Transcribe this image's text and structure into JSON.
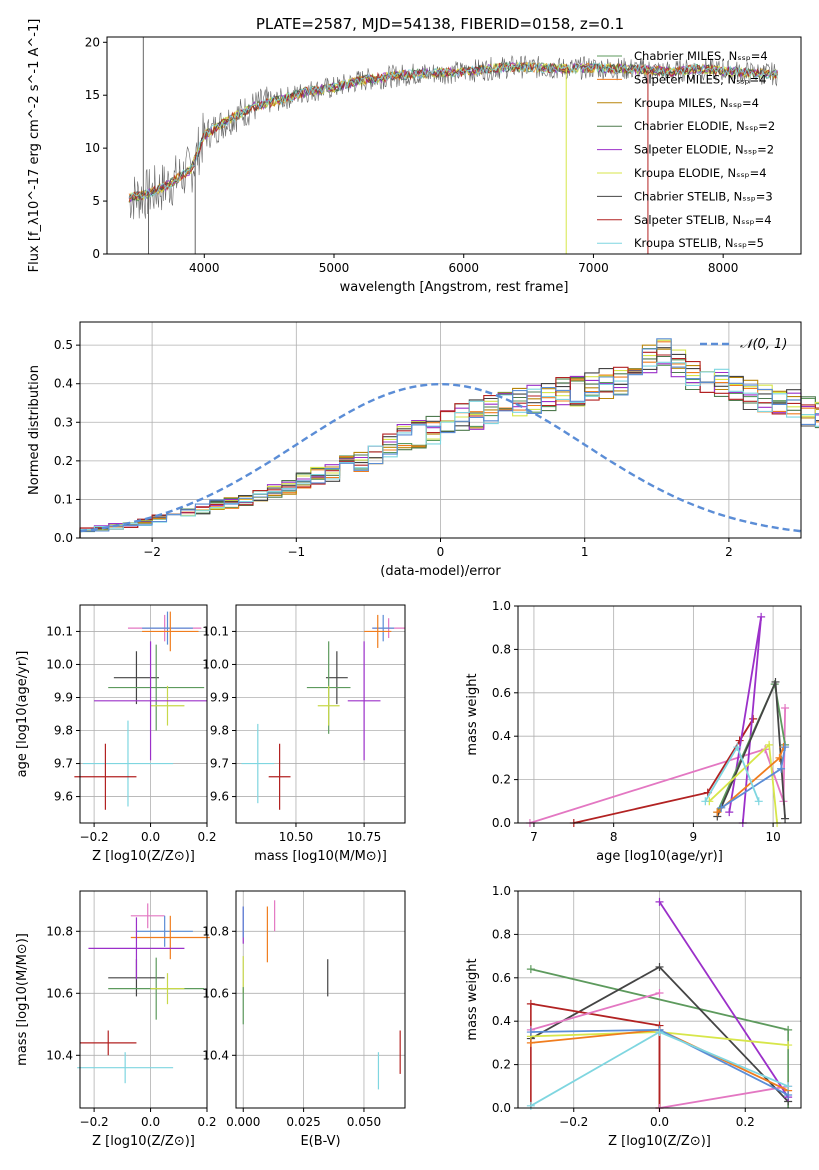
{
  "figure": {
    "title": "PLATE=2587, MJD=54138, FIBERID=0158, z=0.1"
  },
  "chart_data": [
    {
      "id": "spectrum",
      "type": "line",
      "xlabel": "wavelength [Angstrom, rest frame]",
      "ylabel": "Flux [f_λ10^-17 erg cm^-2 s^-1 A^-1]",
      "xlim": [
        3250,
        8600
      ],
      "ylim": [
        0,
        20.5
      ],
      "xticks": [
        4000,
        5000,
        6000,
        7000,
        8000
      ],
      "yticks": [
        0,
        5,
        10,
        15,
        20
      ],
      "grid": false,
      "legend_position": "top-right",
      "continuum": {
        "x": [
          3420,
          3550,
          3700,
          3900,
          4000,
          4200,
          4400,
          4600,
          4800,
          5000,
          5200,
          5400,
          5600,
          5800,
          6000,
          6200,
          6400,
          6600,
          6800,
          7000,
          7200,
          7400,
          7600,
          7800,
          8000,
          8200,
          8420
        ],
        "y": [
          5.3,
          5.6,
          6.4,
          8.0,
          11.2,
          12.8,
          14.0,
          14.6,
          15.4,
          15.7,
          16.4,
          16.7,
          17.0,
          17.1,
          17.2,
          17.5,
          17.7,
          17.6,
          17.5,
          17.6,
          17.5,
          17.4,
          17.2,
          17.5,
          17.3,
          17.1,
          17.0
        ]
      },
      "spikes": [
        {
          "x": 3530,
          "y": 20.5
        },
        {
          "x": 3570,
          "y": 0
        },
        {
          "x": 3930,
          "y": 0
        },
        {
          "x": 6790,
          "y": 0
        },
        {
          "x": 7420,
          "y": 0
        }
      ],
      "series": [
        {
          "name": "Chabrier MILES, N_SSP=4",
          "color": "#5d9a5d"
        },
        {
          "name": "Salpeter MILES, N_SSP=4",
          "color": "#f07d1e"
        },
        {
          "name": "Kroupa MILES, N_SSP=4",
          "color": "#b8860b"
        },
        {
          "name": "Chabrier ELODIE, N_SSP=2",
          "color": "#4f7a4f"
        },
        {
          "name": "Salpeter ELODIE, N_SSP=2",
          "color": "#9b30c9"
        },
        {
          "name": "Kroupa ELODIE, N_SSP=4",
          "color": "#d7e64a"
        },
        {
          "name": "Chabrier STELIB, N_SSP=3",
          "color": "#444444"
        },
        {
          "name": "Salpeter STELIB, N_SSP=4",
          "color": "#b22222"
        },
        {
          "name": "Kroupa STELIB, N_SSP=5",
          "color": "#7fd6e0"
        }
      ]
    },
    {
      "id": "residuals",
      "type": "bar",
      "xlabel": "(data-model)/error",
      "ylabel": "Normed distribution",
      "xlim": [
        -2.5,
        2.5
      ],
      "ylim": [
        0,
        0.56
      ],
      "xticks": [
        -2,
        -1,
        0,
        1,
        2
      ],
      "yticks": [
        0.0,
        0.1,
        0.2,
        0.3,
        0.4,
        0.5
      ],
      "grid": true,
      "legend_position": "top-right",
      "reference": {
        "name": "𝒩(0, 1)",
        "color": "#5b8dd6",
        "mu": 0,
        "sigma": 1
      },
      "bin_width": 0.1,
      "bin_start": -2.5,
      "base": [
        0.02,
        0.025,
        0.03,
        0.035,
        0.04,
        0.05,
        0.055,
        0.065,
        0.075,
        0.085,
        0.09,
        0.1,
        0.11,
        0.12,
        0.13,
        0.15,
        0.16,
        0.17,
        0.19,
        0.2,
        0.22,
        0.24,
        0.26,
        0.27,
        0.28,
        0.3,
        0.31,
        0.32,
        0.33,
        0.35,
        0.35,
        0.36,
        0.37,
        0.38,
        0.38,
        0.39,
        0.4,
        0.41,
        0.43,
        0.46,
        0.48,
        0.45,
        0.42,
        0.41,
        0.4,
        0.38,
        0.37,
        0.36,
        0.36,
        0.35,
        0.33,
        0.32,
        0.3,
        0.29,
        0.27,
        0.25,
        0.24,
        0.22,
        0.21,
        0.2,
        0.18,
        0.16,
        0.15,
        0.13,
        0.12,
        0.11,
        0.1,
        0.09,
        0.08,
        0.07,
        0.065,
        0.055,
        0.05,
        0.045,
        0.04,
        0.035,
        0.03,
        0.028,
        0.025,
        0.022
      ],
      "series_colors": [
        "#5d9a5d",
        "#f07d1e",
        "#b8860b",
        "#4f7a4f",
        "#9b30c9",
        "#d7e64a",
        "#444444",
        "#b22222",
        "#7fd6e0",
        "#5b8dd6"
      ]
    },
    {
      "id": "z-age",
      "type": "scatter",
      "xlabel": "Z [log10(Z/Z⊙)]",
      "ylabel": "age [log10(age/yr)]",
      "xlim": [
        -0.25,
        0.2
      ],
      "ylim": [
        9.52,
        10.18
      ],
      "xticks": [
        -0.2,
        0.0,
        0.2
      ],
      "yticks": [
        9.6,
        9.7,
        9.8,
        9.9,
        10.0,
        10.1
      ],
      "grid": true,
      "points": [
        {
          "x": 0.05,
          "y": 10.11,
          "xerr": 0.13,
          "yerr": 0.04,
          "color": "#e377c2"
        },
        {
          "x": 0.06,
          "y": 10.11,
          "xerr": 0.09,
          "yerr": 0.05,
          "color": "#5b8dd6"
        },
        {
          "x": 0.07,
          "y": 10.1,
          "xerr": 0.1,
          "yerr": 0.06,
          "color": "#f07d1e"
        },
        {
          "x": -0.05,
          "y": 9.96,
          "xerr": 0.08,
          "yerr": 0.08,
          "color": "#444444"
        },
        {
          "x": 0.02,
          "y": 9.93,
          "xerr": 0.17,
          "yerr": 0.13,
          "color": "#5d9a5d"
        },
        {
          "x": 0.06,
          "y": 9.875,
          "xerr": 0.06,
          "yerr": 0.06,
          "color": "#c8d84a"
        },
        {
          "x": 0.0,
          "y": 9.89,
          "xerr": 0.2,
          "yerr": 0.18,
          "color": "#9b30c9"
        },
        {
          "x": -0.08,
          "y": 9.7,
          "xerr": 0.16,
          "yerr": 0.13,
          "color": "#7fd6e0"
        },
        {
          "x": -0.16,
          "y": 9.66,
          "xerr": 0.11,
          "yerr": 0.1,
          "color": "#b22222"
        }
      ]
    },
    {
      "id": "mass-age",
      "type": "scatter",
      "xlabel": "mass [log10(M/M⊙)]",
      "ylabel": "",
      "xlim": [
        10.28,
        10.9
      ],
      "ylim": [
        9.52,
        10.18
      ],
      "xticks": [
        10.25,
        10.5,
        10.75
      ],
      "yticks": [
        9.6,
        9.7,
        9.8,
        9.9,
        10.0,
        10.1
      ],
      "grid": true,
      "points": [
        {
          "x": 10.84,
          "y": 10.11,
          "xerr": 0.06,
          "yerr": 0.03,
          "color": "#e377c2"
        },
        {
          "x": 10.82,
          "y": 10.11,
          "xerr": 0.04,
          "yerr": 0.04,
          "color": "#5b8dd6"
        },
        {
          "x": 10.8,
          "y": 10.1,
          "xerr": 0.05,
          "yerr": 0.05,
          "color": "#f07d1e"
        },
        {
          "x": 10.65,
          "y": 9.96,
          "xerr": 0.04,
          "yerr": 0.08,
          "color": "#444444"
        },
        {
          "x": 10.62,
          "y": 9.93,
          "xerr": 0.08,
          "yerr": 0.14,
          "color": "#5d9a5d"
        },
        {
          "x": 10.62,
          "y": 9.875,
          "xerr": 0.04,
          "yerr": 0.06,
          "color": "#c8d84a"
        },
        {
          "x": 10.75,
          "y": 9.89,
          "xerr": 0.06,
          "yerr": 0.18,
          "color": "#9b30c9"
        },
        {
          "x": 10.36,
          "y": 9.7,
          "xerr": 0.06,
          "yerr": 0.12,
          "color": "#7fd6e0"
        },
        {
          "x": 10.44,
          "y": 9.66,
          "xerr": 0.04,
          "yerr": 0.1,
          "color": "#b22222"
        }
      ]
    },
    {
      "id": "age-weight",
      "type": "line",
      "xlabel": "age [log10(age/yr)]",
      "ylabel": "mass weight",
      "xlim": [
        6.8,
        10.35
      ],
      "ylim": [
        0,
        1.0
      ],
      "xticks": [
        7,
        8,
        9,
        10
      ],
      "yticks": [
        0.0,
        0.2,
        0.4,
        0.6,
        0.8,
        1.0
      ],
      "grid": true,
      "series": [
        {
          "color": "#e377c2",
          "x": [
            6.95,
            9.9,
            10.13,
            10.15
          ],
          "y": [
            0.0,
            0.34,
            0.1,
            0.53
          ]
        },
        {
          "color": "#b22222",
          "x": [
            7.5,
            9.18,
            9.75,
            9.58
          ],
          "y": [
            0.0,
            0.14,
            0.48,
            0.38
          ]
        },
        {
          "color": "#9b30c9",
          "x": [
            9.45,
            9.85,
            9.62
          ],
          "y": [
            0.05,
            0.95,
            0.0
          ]
        },
        {
          "color": "#5d9a5d",
          "x": [
            9.3,
            10.02,
            10.15
          ],
          "y": [
            0.05,
            0.64,
            0.36
          ]
        },
        {
          "color": "#444444",
          "x": [
            9.3,
            10.03,
            10.15
          ],
          "y": [
            0.03,
            0.65,
            0.02
          ]
        },
        {
          "color": "#d7e64a",
          "x": [
            9.2,
            9.95,
            10.05
          ],
          "y": [
            0.1,
            0.36,
            0.0
          ]
        },
        {
          "color": "#f07d1e",
          "x": [
            9.3,
            10.08,
            10.13
          ],
          "y": [
            0.05,
            0.3,
            0.35
          ]
        },
        {
          "color": "#5b8dd6",
          "x": [
            9.35,
            10.1,
            10.15
          ],
          "y": [
            0.07,
            0.25,
            0.35
          ]
        },
        {
          "color": "#7fd6e0",
          "x": [
            9.15,
            9.55,
            9.82
          ],
          "y": [
            0.1,
            0.35,
            0.1
          ]
        }
      ]
    },
    {
      "id": "z-mass",
      "type": "scatter",
      "xlabel": "Z [log10(Z/Z⊙)]",
      "ylabel": "mass [log10(M/M⊙)]",
      "xlim": [
        -0.25,
        0.2
      ],
      "ylim": [
        10.23,
        10.93
      ],
      "xticks": [
        -0.2,
        0.0,
        0.2
      ],
      "yticks": [
        10.4,
        10.6,
        10.8
      ],
      "grid": true,
      "points": [
        {
          "x": -0.01,
          "y": 10.85,
          "xerr": 0.06,
          "yerr": 0.04,
          "color": "#e377c2"
        },
        {
          "x": 0.05,
          "y": 10.8,
          "xerr": 0.1,
          "yerr": 0.05,
          "color": "#5b8dd6"
        },
        {
          "x": 0.07,
          "y": 10.78,
          "xerr": 0.14,
          "yerr": 0.07,
          "color": "#f07d1e"
        },
        {
          "x": -0.05,
          "y": 10.65,
          "xerr": 0.1,
          "yerr": 0.06,
          "color": "#444444"
        },
        {
          "x": 0.02,
          "y": 10.615,
          "xerr": 0.17,
          "yerr": 0.1,
          "color": "#5d9a5d"
        },
        {
          "x": 0.06,
          "y": 10.615,
          "xerr": 0.06,
          "yerr": 0.05,
          "color": "#c8d84a"
        },
        {
          "x": -0.05,
          "y": 10.745,
          "xerr": 0.17,
          "yerr": 0.1,
          "color": "#9b30c9"
        },
        {
          "x": -0.09,
          "y": 10.36,
          "xerr": 0.17,
          "yerr": 0.05,
          "color": "#7fd6e0"
        },
        {
          "x": -0.15,
          "y": 10.44,
          "xerr": 0.1,
          "yerr": 0.04,
          "color": "#b22222"
        }
      ]
    },
    {
      "id": "ebv-mass",
      "type": "scatter",
      "xlabel": "E(B-V)",
      "ylabel": "",
      "xlim": [
        -0.003,
        0.067
      ],
      "ylim": [
        10.23,
        10.93
      ],
      "xticks": [
        0.0,
        0.025,
        0.05
      ],
      "yticks": [
        10.4,
        10.6,
        10.8
      ],
      "grid": true,
      "points": [
        {
          "x": 0.0,
          "y": 10.82,
          "xerr": 0,
          "yerr": 0.06,
          "color": "#9b30c9"
        },
        {
          "x": 0.0,
          "y": 10.66,
          "xerr": 0,
          "yerr": 0.06,
          "color": "#c8d84a"
        },
        {
          "x": 0.0,
          "y": 10.56,
          "xerr": 0,
          "yerr": 0.06,
          "color": "#5d9a5d"
        },
        {
          "x": 0.0,
          "y": 10.83,
          "xerr": 0,
          "yerr": 0.05,
          "color": "#5b8dd6"
        },
        {
          "x": 0.01,
          "y": 10.79,
          "xerr": 0,
          "yerr": 0.09,
          "color": "#f07d1e"
        },
        {
          "x": 0.013,
          "y": 10.85,
          "xerr": 0,
          "yerr": 0.05,
          "color": "#e377c2"
        },
        {
          "x": 0.035,
          "y": 10.65,
          "xerr": 0,
          "yerr": 0.06,
          "color": "#444444"
        },
        {
          "x": 0.056,
          "y": 10.35,
          "xerr": 0,
          "yerr": 0.06,
          "color": "#7fd6e0"
        },
        {
          "x": 0.065,
          "y": 10.41,
          "xerr": 0,
          "yerr": 0.07,
          "color": "#b22222"
        }
      ]
    },
    {
      "id": "z-weight",
      "type": "line",
      "xlabel": "Z [log10(Z/Z⊙)]",
      "ylabel": "mass weight",
      "xlim": [
        -0.33,
        0.33
      ],
      "ylim": [
        0,
        1.0
      ],
      "xticks": [
        -0.2,
        0.0,
        0.2
      ],
      "yticks": [
        0.0,
        0.2,
        0.4,
        0.6,
        0.8,
        1.0
      ],
      "grid": true,
      "series": [
        {
          "color": "#5d9a5d",
          "x": [
            -0.3,
            0.3
          ],
          "y": [
            0.64,
            0.36
          ]
        },
        {
          "color": "#444444",
          "x": [
            -0.3,
            0.0,
            0.3
          ],
          "y": [
            0.32,
            0.65,
            0.03
          ]
        },
        {
          "color": "#9b30c9",
          "x": [
            0.0,
            0.3
          ],
          "y": [
            0.95,
            0.05
          ]
        },
        {
          "color": "#b22222",
          "x": [
            -0.3,
            0.0,
            0.0
          ],
          "y": [
            0.48,
            0.38,
            0.0
          ]
        },
        {
          "color": "#e377c2",
          "x": [
            -0.3,
            0.0
          ],
          "y": [
            0.36,
            0.53
          ]
        },
        {
          "color": "#e377c2",
          "x": [
            0.0,
            0.3
          ],
          "y": [
            0.0,
            0.1
          ]
        },
        {
          "color": "#d7e64a",
          "x": [
            -0.3,
            0.0,
            0.3
          ],
          "y": [
            0.33,
            0.35,
            0.29
          ]
        },
        {
          "color": "#f07d1e",
          "x": [
            -0.3,
            0.0,
            0.3
          ],
          "y": [
            0.3,
            0.36,
            0.08
          ]
        },
        {
          "color": "#5b8dd6",
          "x": [
            -0.3,
            0.0,
            0.3
          ],
          "y": [
            0.35,
            0.36,
            0.06
          ]
        },
        {
          "color": "#7fd6e0",
          "x": [
            -0.3,
            0.0,
            0.3
          ],
          "y": [
            0.01,
            0.35,
            0.1
          ]
        }
      ],
      "vsegments": [
        {
          "x": -0.3,
          "y0": 0.0,
          "y1": 0.48,
          "color": "#b22222"
        },
        {
          "x": 0.0,
          "y0": 0.0,
          "y1": 0.38,
          "color": "#b22222"
        },
        {
          "x": 0.3,
          "y0": 0.0,
          "y1": 0.36,
          "color": "#5d9a5d"
        }
      ]
    }
  ]
}
